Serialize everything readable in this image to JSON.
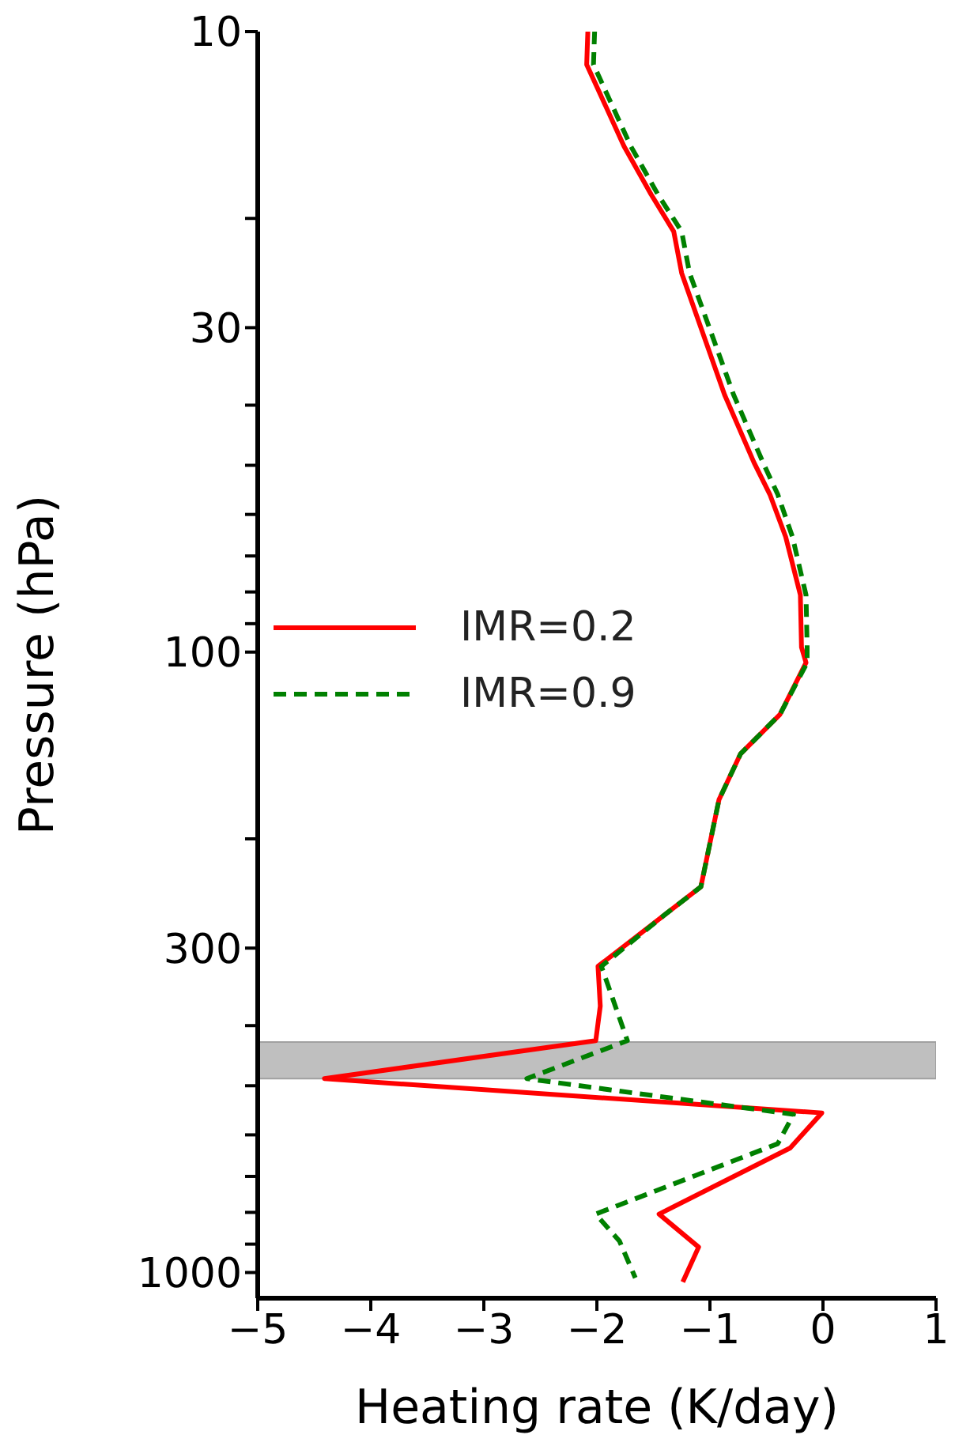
{
  "chart_data": {
    "type": "line",
    "xlabel": "Heating rate (K/day)",
    "ylabel": "Pressure (hPa)",
    "xlim": [
      -5,
      1
    ],
    "xticks": [
      -5,
      -4,
      -3,
      -2,
      -1,
      0,
      1
    ],
    "ylim": [
      1100,
      10
    ],
    "log": "y",
    "yticks": [
      10,
      {
        "value": 20,
        "label": null
      },
      30,
      {
        "value": 40,
        "label": null
      },
      {
        "value": 50,
        "label": null
      },
      {
        "value": 60,
        "label": null
      },
      {
        "value": 70,
        "label": null
      },
      {
        "value": 80,
        "label": null
      },
      {
        "value": 90,
        "label": null
      },
      100,
      {
        "value": 200,
        "label": null
      },
      300,
      {
        "value": 400,
        "label": null
      },
      {
        "value": 500,
        "label": null
      },
      {
        "value": 600,
        "label": null
      },
      {
        "value": 700,
        "label": null
      },
      {
        "value": 800,
        "label": null
      },
      {
        "value": 900,
        "label": null
      },
      1000
    ],
    "legend": "center left",
    "marker": "none",
    "bands": [
      {
        "axis": "y",
        "from": 425,
        "to": 487,
        "color": "#bfbfbf"
      }
    ],
    "series": [
      {
        "name": "IMR=0.2",
        "color": "#ff0000",
        "line_style": "solid",
        "x": [
          -2.08,
          -2.09,
          -1.76,
          -1.52,
          -1.32,
          -1.25,
          -0.87,
          -0.61,
          -0.47,
          -0.33,
          -0.2,
          -0.19,
          -0.15,
          -0.38,
          -0.73,
          -0.92,
          -1.08,
          -1.41,
          -1.99,
          -1.97,
          -2.01,
          -4.41,
          -0.01,
          -0.29,
          -1.45,
          -1.1,
          -1.24
        ],
        "values": [
          10,
          11.3,
          15.3,
          18.3,
          21,
          24.5,
          38.5,
          49.5,
          55.7,
          65.2,
          80.9,
          98.2,
          104,
          126,
          146,
          173,
          239,
          266,
          321,
          372,
          423,
          487,
          553,
          630,
          805,
          910,
          1036
        ]
      },
      {
        "name": "IMR=0.9",
        "color": "#008000",
        "line_style": "dashed",
        "x": [
          -2.02,
          -2.03,
          -1.7,
          -1.46,
          -1.25,
          -1.18,
          -0.79,
          -0.53,
          -0.4,
          -0.27,
          -0.15,
          -0.14,
          -0.14,
          -0.38,
          -0.73,
          -0.92,
          -1.08,
          -1.41,
          -1.96,
          -1.73,
          -2.62,
          -0.26,
          -0.4,
          -2.01,
          -1.8,
          -1.66
        ],
        "values": [
          10,
          11.3,
          15.3,
          18.3,
          21,
          24.5,
          38.5,
          49.5,
          55.7,
          65.2,
          80.9,
          98.2,
          104,
          126,
          146,
          173,
          239,
          266,
          321,
          423,
          487,
          556,
          620,
          805,
          890,
          1020
        ]
      }
    ]
  }
}
